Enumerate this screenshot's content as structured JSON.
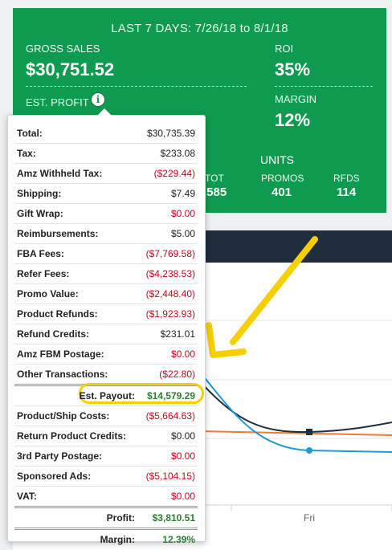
{
  "summary": {
    "date_range": "LAST 7 DAYS: 7/26/18 to 8/1/18",
    "gross_sales_label": "GROSS SALES",
    "gross_sales_value": "$30,751.52",
    "roi_label": "ROI",
    "roi_value": "35%",
    "est_profit_label": "EST. PROFIT",
    "margin_label": "MARGIN",
    "margin_value": "12%",
    "units_label": "UNITS",
    "tot_label": "TOT",
    "tot_value": ",585",
    "promos_label": "PROMOS",
    "promos_value": "401",
    "rfds_label": "RFDS",
    "rfds_value": "114"
  },
  "chart": {
    "x_tick": "Fri",
    "colors": {
      "navy": "#1f2d3d",
      "blue": "#1e9ad6",
      "orange": "#f07a3a"
    }
  },
  "breakdown": {
    "rows": [
      {
        "label": "Total:",
        "value": "$30,735.39",
        "tone": ""
      },
      {
        "label": "Tax:",
        "value": "$233.08",
        "tone": ""
      },
      {
        "label": "Amz Withheld Tax:",
        "value": "($229.44)",
        "tone": "neg"
      },
      {
        "label": "Shipping:",
        "value": "$7.49",
        "tone": ""
      },
      {
        "label": "Gift Wrap:",
        "value": "$0.00",
        "tone": "neg"
      },
      {
        "label": "Reimbursements:",
        "value": "$5.00",
        "tone": ""
      },
      {
        "label": "FBA Fees:",
        "value": "($7,769.58)",
        "tone": "neg"
      },
      {
        "label": "Refer Fees:",
        "value": "($4,238.53)",
        "tone": "neg"
      },
      {
        "label": "Promo Value:",
        "value": "($2,448.40)",
        "tone": "neg"
      },
      {
        "label": "Product Refunds:",
        "value": "($1,923.93)",
        "tone": "neg"
      },
      {
        "label": "Refund Credits:",
        "value": "$231.01",
        "tone": ""
      },
      {
        "label": "Amz FBM Postage:",
        "value": "$0.00",
        "tone": "neg"
      },
      {
        "label": "Other Transactions:",
        "value": "($22.80)",
        "tone": "neg"
      }
    ],
    "payout": {
      "label": "Est. Payout:",
      "value": "$14,579.29"
    },
    "costs": [
      {
        "label": "Product/Ship Costs:",
        "value": "($5,664.63)",
        "tone": "neg"
      },
      {
        "label": "Return Product Credits:",
        "value": "$0.00",
        "tone": ""
      },
      {
        "label": "3rd Party Postage:",
        "value": "$0.00",
        "tone": "neg"
      },
      {
        "label": "Sponsored Ads:",
        "value": "($5,104.15)",
        "tone": "neg"
      },
      {
        "label": "VAT:",
        "value": "$0.00",
        "tone": "neg"
      }
    ],
    "profit": {
      "label": "Profit:",
      "value": "$3,810.51"
    },
    "margin": {
      "label": "Margin:",
      "value": "12.39%"
    }
  },
  "annotation": {
    "arrow_color": "#f5cf00",
    "highlight_color": "#f5cf00"
  }
}
